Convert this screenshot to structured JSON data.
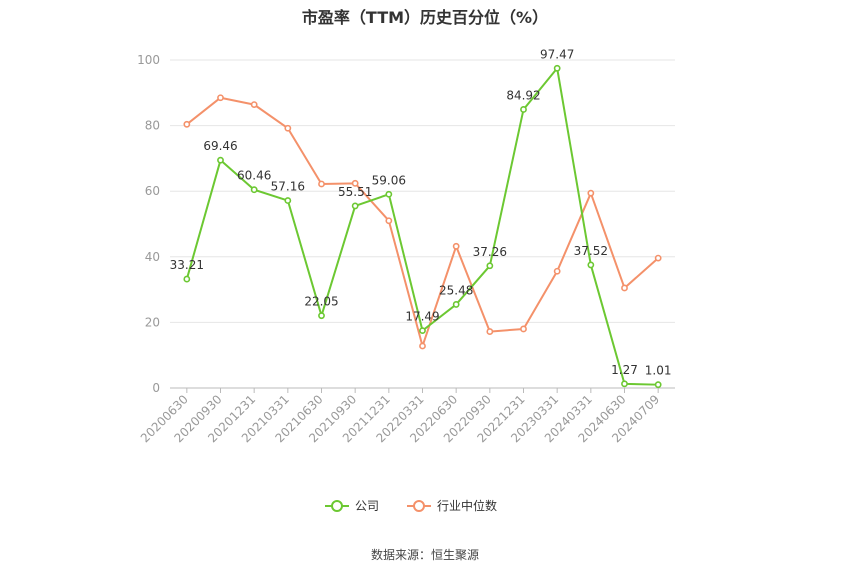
{
  "chart_data": {
    "type": "line",
    "title": "市盈率（TTM）历史百分位（%）",
    "source": "数据来源：恒生聚源",
    "categories": [
      "20200630",
      "20200930",
      "20201231",
      "20210331",
      "20210630",
      "20210930",
      "20211231",
      "20220331",
      "20220630",
      "20220930",
      "20221231",
      "20230331",
      "20240331",
      "20240630",
      "20240709"
    ],
    "ylim": [
      0,
      100
    ],
    "yticks": [
      0,
      20,
      40,
      60,
      80,
      100
    ],
    "grid": true,
    "legend_position": "bottom",
    "series": [
      {
        "name": "公司",
        "color": "#6cc832",
        "labels_shown": true,
        "values": [
          33.21,
          69.46,
          60.46,
          57.16,
          22.05,
          55.51,
          59.06,
          17.49,
          25.48,
          37.26,
          84.92,
          97.47,
          37.52,
          1.27,
          1.01
        ],
        "value_labels": [
          "33.21",
          "69.46",
          "60.46",
          "57.16",
          "22.05",
          "55.51",
          "59.06",
          "17.49",
          "25.48",
          "37.26",
          "84.92",
          "97.47",
          "37.52",
          "1.27",
          "1.01"
        ]
      },
      {
        "name": "行业中位数",
        "color": "#f4916a",
        "labels_shown": false,
        "values": [
          80.4,
          88.5,
          86.4,
          79.2,
          62.2,
          62.4,
          51.0,
          12.8,
          43.2,
          17.2,
          18.0,
          35.6,
          59.4,
          30.5,
          39.6
        ]
      }
    ]
  }
}
